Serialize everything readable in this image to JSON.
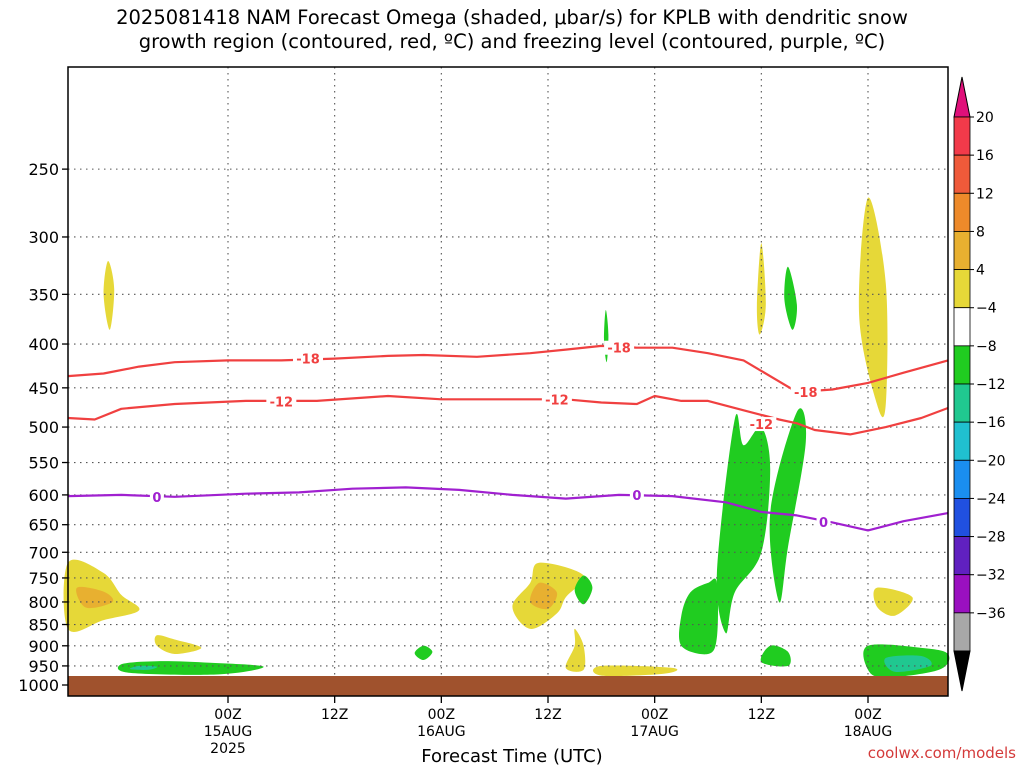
{
  "title": {
    "line1": "2025081418 NAM Forecast Omega (shaded, μbar/s) for KPLB with dendritic snow",
    "line2": "growth region (contoured, red, ºC) and freezing level (contoured, purple, ºC)"
  },
  "credit": "coolwx.com/models",
  "chart_data": {
    "type": "heatmap",
    "xlabel": "Forecast Time (UTC)",
    "ylabel": "",
    "x_range_hours": [
      -12,
      87
    ],
    "y_range_hpa": [
      190,
      1030
    ],
    "y_scale": "log",
    "grid": true,
    "y_ticks": [
      250,
      300,
      350,
      400,
      450,
      500,
      550,
      600,
      650,
      700,
      750,
      800,
      850,
      900,
      950,
      1000
    ],
    "x_ticks": [
      {
        "hour": 6,
        "line1": "00Z",
        "line2": "15AUG",
        "line3": "2025"
      },
      {
        "hour": 18,
        "line1": "12Z",
        "line2": "",
        "line3": ""
      },
      {
        "hour": 30,
        "line1": "00Z",
        "line2": "16AUG",
        "line3": ""
      },
      {
        "hour": 42,
        "line1": "12Z",
        "line2": "",
        "line3": ""
      },
      {
        "hour": 54,
        "line1": "00Z",
        "line2": "17AUG",
        "line3": ""
      },
      {
        "hour": 66,
        "line1": "12Z",
        "line2": "",
        "line3": ""
      },
      {
        "hour": 78,
        "line1": "00Z",
        "line2": "18AUG",
        "line3": ""
      }
    ],
    "colorbar": {
      "labels": [
        "20",
        "16",
        "12",
        "8",
        "4",
        "−4",
        "−8",
        "−12",
        "−16",
        "−20",
        "−24",
        "−28",
        "−32",
        "−36"
      ],
      "colors": [
        "#f23a4a",
        "#ef5a3a",
        "#ee8a2a",
        "#e8b030",
        "#e6d838",
        "#ffffff",
        "#20cc20",
        "#20c890",
        "#20c0d0",
        "#1a8ef0",
        "#2050e0",
        "#6020c0",
        "#9a10c0",
        "#a8a8a8"
      ],
      "top_cap_color": "#e0107a",
      "bottom_cap_color": "#000000"
    },
    "contours": [
      {
        "level": "-18",
        "color": "#f04040",
        "points": [
          [
            -12,
            436
          ],
          [
            -8,
            433
          ],
          [
            -4,
            425
          ],
          [
            0,
            420
          ],
          [
            6,
            418
          ],
          [
            12,
            418
          ],
          [
            18,
            416
          ],
          [
            24,
            413
          ],
          [
            28,
            412
          ],
          [
            34,
            414
          ],
          [
            40,
            410
          ],
          [
            44,
            406
          ],
          [
            48,
            402
          ],
          [
            52,
            404
          ],
          [
            56,
            404
          ],
          [
            60,
            410
          ],
          [
            64,
            418
          ],
          [
            66,
            430
          ],
          [
            70,
            455
          ],
          [
            74,
            452
          ],
          [
            78,
            444
          ],
          [
            82,
            432
          ],
          [
            87,
            418
          ]
        ],
        "labels": [
          [
            15,
            416
          ],
          [
            50,
            404
          ],
          [
            71,
            455
          ]
        ]
      },
      {
        "level": "-12",
        "color": "#f04040",
        "points": [
          [
            -12,
            488
          ],
          [
            -9,
            490
          ],
          [
            -6,
            476
          ],
          [
            0,
            470
          ],
          [
            8,
            466
          ],
          [
            16,
            466
          ],
          [
            24,
            460
          ],
          [
            30,
            464
          ],
          [
            36,
            464
          ],
          [
            44,
            464
          ],
          [
            48,
            468
          ],
          [
            52,
            470
          ],
          [
            54,
            460
          ],
          [
            57,
            466
          ],
          [
            60,
            466
          ],
          [
            64,
            478
          ],
          [
            68,
            490
          ],
          [
            70,
            495
          ],
          [
            72,
            504
          ],
          [
            76,
            510
          ],
          [
            80,
            500
          ],
          [
            84,
            488
          ],
          [
            87,
            475
          ]
        ],
        "labels": [
          [
            12,
            467
          ],
          [
            43,
            464
          ],
          [
            66,
            496
          ]
        ]
      },
      {
        "level": "0",
        "color": "#a020d0",
        "points": [
          [
            -12,
            602
          ],
          [
            -6,
            600
          ],
          [
            0,
            603
          ],
          [
            8,
            598
          ],
          [
            14,
            596
          ],
          [
            20,
            590
          ],
          [
            26,
            588
          ],
          [
            32,
            592
          ],
          [
            38,
            600
          ],
          [
            44,
            606
          ],
          [
            50,
            600
          ],
          [
            56,
            602
          ],
          [
            62,
            612
          ],
          [
            66,
            628
          ],
          [
            70,
            634
          ],
          [
            74,
            646
          ],
          [
            78,
            660
          ],
          [
            82,
            644
          ],
          [
            87,
            630
          ]
        ],
        "labels": [
          [
            -2,
            603
          ],
          [
            52,
            600
          ],
          [
            73,
            645
          ]
        ]
      }
    ],
    "shaded": [
      {
        "value": 4,
        "color": "#e6d838",
        "points": [
          [
            -12,
            720
          ],
          [
            -8,
            740
          ],
          [
            -6,
            785
          ],
          [
            -4,
            818
          ],
          [
            -8,
            840
          ],
          [
            -12,
            860
          ]
        ]
      },
      {
        "value": 8,
        "color": "#e8b030",
        "points": [
          [
            -11,
            770
          ],
          [
            -8,
            778
          ],
          [
            -7,
            800
          ],
          [
            -10,
            812
          ]
        ]
      },
      {
        "value": 4,
        "color": "#e6d838",
        "points": [
          [
            -7.5,
            320
          ],
          [
            -6.8,
            345
          ],
          [
            -7.3,
            385
          ],
          [
            -8,
            350
          ]
        ]
      },
      {
        "value": -4,
        "color": "#20cc20",
        "points": [
          [
            -6,
            946
          ],
          [
            -2,
            938
          ],
          [
            4,
            942
          ],
          [
            10,
            952
          ],
          [
            5,
            972
          ],
          [
            -5,
            968
          ]
        ]
      },
      {
        "value": -8,
        "color": "#20c890",
        "points": [
          [
            -4,
            950
          ],
          [
            -2,
            952
          ],
          [
            -3,
            960
          ],
          [
            -5,
            958
          ]
        ]
      },
      {
        "value": 4,
        "color": "#e6d838",
        "points": [
          [
            -2,
            875
          ],
          [
            0,
            885
          ],
          [
            3,
            905
          ],
          [
            0,
            920
          ],
          [
            -2,
            900
          ]
        ]
      },
      {
        "value": -4,
        "color": "#20cc20",
        "points": [
          [
            28,
            900
          ],
          [
            29,
            915
          ],
          [
            28,
            935
          ],
          [
            27,
            918
          ]
        ]
      },
      {
        "value": 4,
        "color": "#e6d838",
        "points": [
          [
            41,
            720
          ],
          [
            46,
            745
          ],
          [
            44,
            790
          ],
          [
            43,
            825
          ],
          [
            40,
            860
          ],
          [
            38,
            810
          ],
          [
            40,
            760
          ]
        ]
      },
      {
        "value": 8,
        "color": "#e8b030",
        "points": [
          [
            41,
            760
          ],
          [
            43,
            780
          ],
          [
            42,
            815
          ],
          [
            40,
            800
          ]
        ]
      },
      {
        "value": -4,
        "color": "#20cc20",
        "points": [
          [
            46,
            745
          ],
          [
            47,
            770
          ],
          [
            46,
            805
          ],
          [
            45,
            775
          ]
        ]
      },
      {
        "value": 4,
        "color": "#e6d838",
        "points": [
          [
            45,
            860
          ],
          [
            46,
            900
          ],
          [
            46,
            960
          ],
          [
            44,
            955
          ],
          [
            45,
            900
          ]
        ]
      },
      {
        "value": 4,
        "color": "#e6d838",
        "points": [
          [
            48,
            950
          ],
          [
            56,
            955
          ],
          [
            55,
            970
          ],
          [
            48,
            975
          ]
        ]
      },
      {
        "value": -4,
        "color": "#20cc20",
        "points": [
          [
            48.5,
            365
          ],
          [
            48.8,
            390
          ],
          [
            48.6,
            420
          ],
          [
            48.3,
            395
          ]
        ]
      },
      {
        "value": -4,
        "color": "#20cc20",
        "points": [
          [
            58,
            780
          ],
          [
            60,
            760
          ],
          [
            61,
            760
          ],
          [
            61,
            880
          ],
          [
            60,
            920
          ],
          [
            57,
            900
          ],
          [
            57,
            830
          ]
        ]
      },
      {
        "value": -4,
        "color": "#20cc20",
        "points": [
          [
            61,
            740
          ],
          [
            63,
            490
          ],
          [
            64,
            525
          ],
          [
            66,
            500
          ],
          [
            67,
            560
          ],
          [
            66,
            700
          ],
          [
            63,
            780
          ],
          [
            62,
            870
          ]
        ]
      },
      {
        "value": -4,
        "color": "#20cc20",
        "points": [
          [
            67,
            630
          ],
          [
            70,
            480
          ],
          [
            71,
            520
          ],
          [
            69,
            690
          ],
          [
            68,
            800
          ]
        ]
      },
      {
        "value": 4,
        "color": "#e6d838",
        "points": [
          [
            66,
            305
          ],
          [
            66.5,
            360
          ],
          [
            65.8,
            390
          ],
          [
            65.5,
            360
          ]
        ]
      },
      {
        "value": -4,
        "color": "#20cc20",
        "points": [
          [
            69,
            325
          ],
          [
            70,
            360
          ],
          [
            69.5,
            385
          ],
          [
            68.6,
            355
          ]
        ]
      },
      {
        "value": -4,
        "color": "#20cc20",
        "points": [
          [
            67,
            900
          ],
          [
            69,
            915
          ],
          [
            69,
            950
          ],
          [
            66,
            940
          ]
        ]
      },
      {
        "value": 4,
        "color": "#e6d838",
        "points": [
          [
            78,
            270
          ],
          [
            80,
            340
          ],
          [
            80,
            470
          ],
          [
            79,
            470
          ],
          [
            77,
            370
          ]
        ]
      },
      {
        "value": 4,
        "color": "#e6d838",
        "points": [
          [
            79,
            770
          ],
          [
            83,
            790
          ],
          [
            81,
            830
          ],
          [
            79,
            810
          ]
        ]
      },
      {
        "value": -4,
        "color": "#20cc20",
        "points": [
          [
            78,
            900
          ],
          [
            84,
            905
          ],
          [
            87,
            920
          ],
          [
            86,
            960
          ],
          [
            80,
            980
          ],
          [
            78,
            960
          ]
        ]
      },
      {
        "value": -8,
        "color": "#20c890",
        "points": [
          [
            80,
            930
          ],
          [
            84,
            925
          ],
          [
            85,
            950
          ],
          [
            81,
            965
          ]
        ]
      }
    ]
  }
}
